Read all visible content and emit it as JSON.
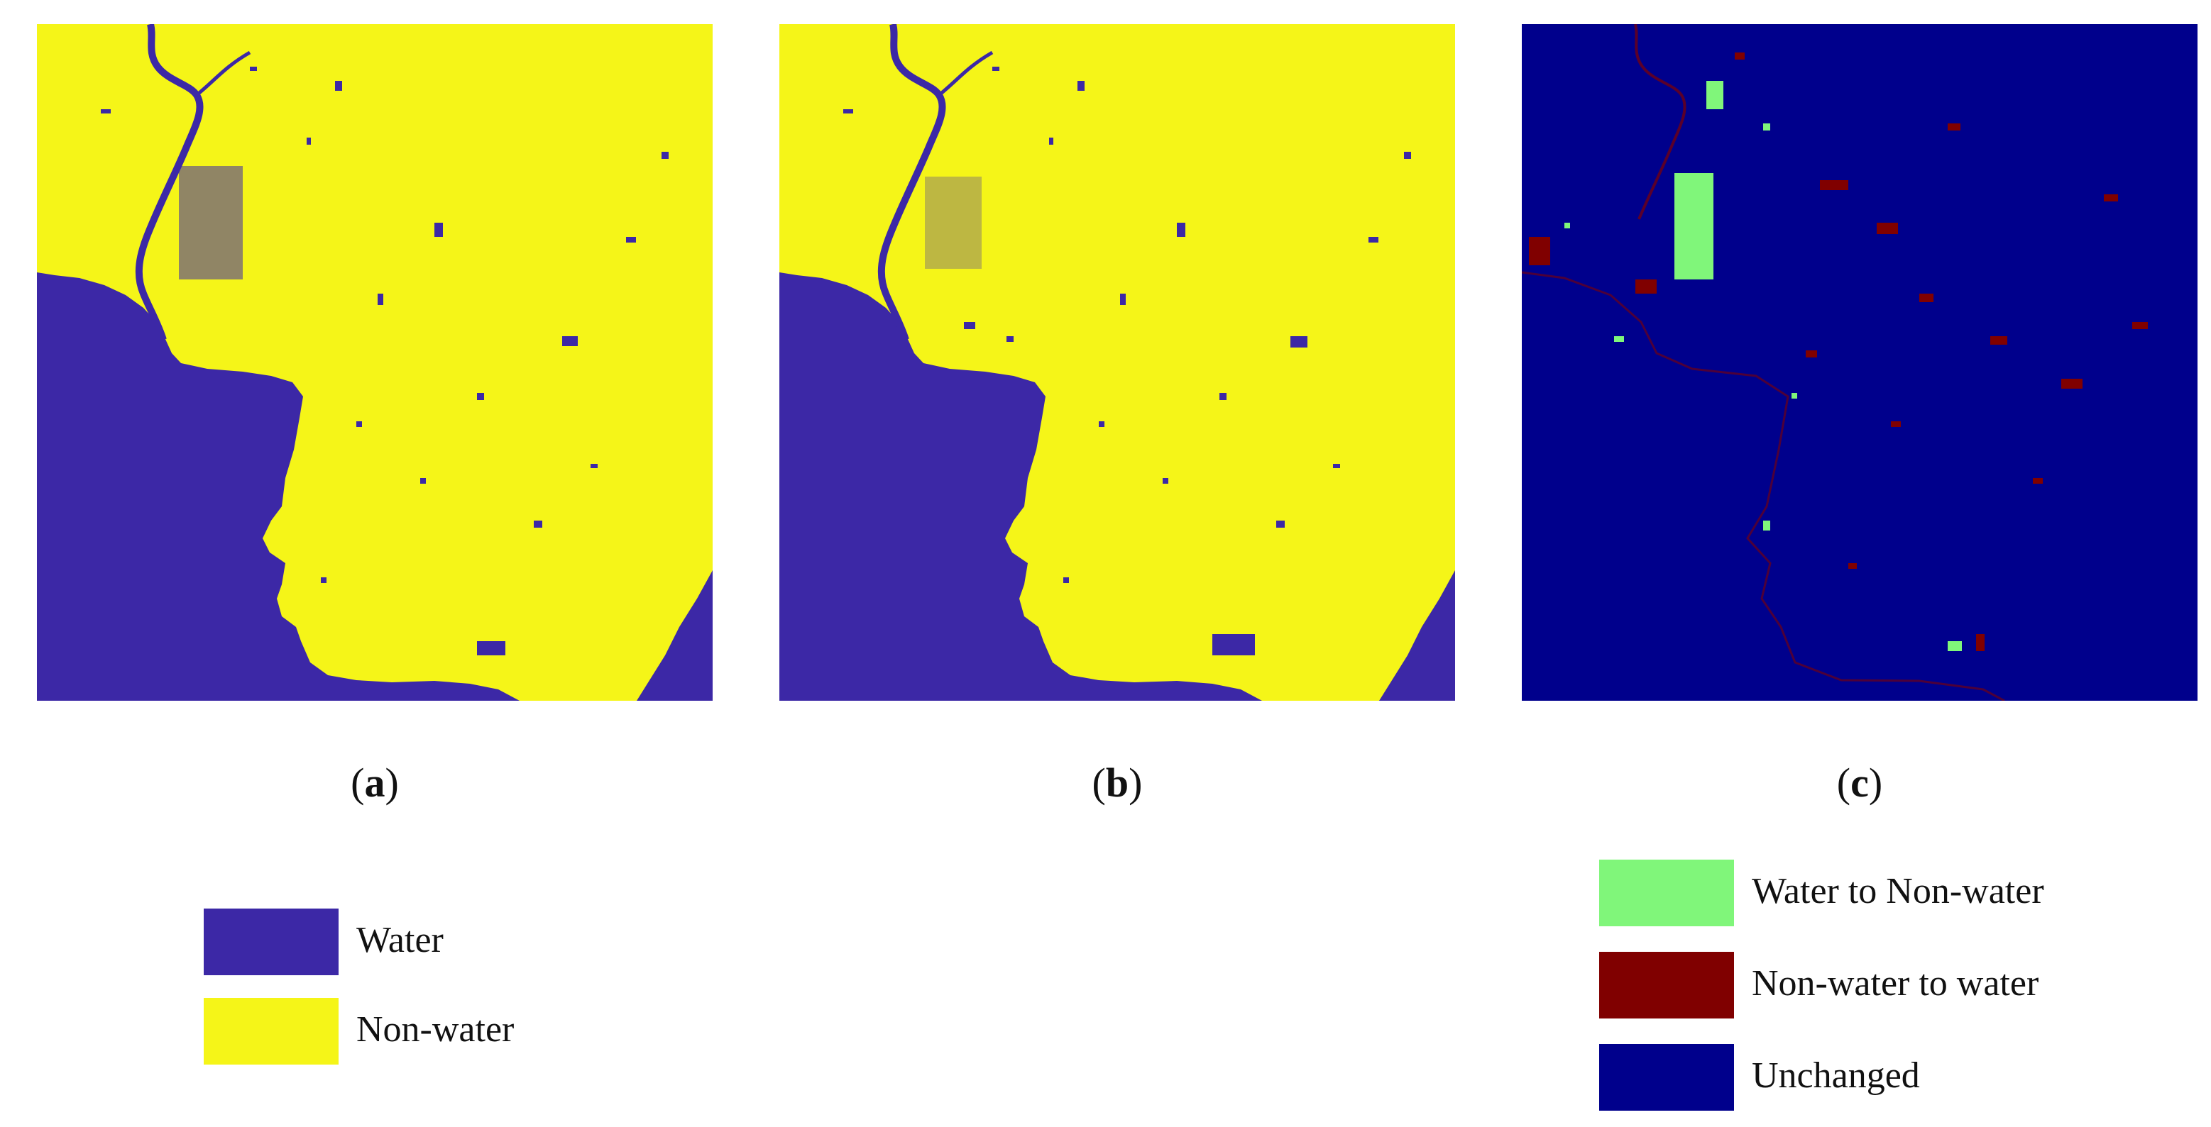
{
  "colors": {
    "water": "#3c28a6",
    "non_water": "#f5f518",
    "change_unchanged": "#00008c",
    "change_water_to_non_water": "#80f67a",
    "change_non_water_to_water": "#800000"
  },
  "panels": [
    {
      "id": "a",
      "label": "a"
    },
    {
      "id": "b",
      "label": "b"
    },
    {
      "id": "c",
      "label": "c"
    }
  ],
  "legend_left": {
    "items": [
      {
        "label": "Water",
        "color": "#3c28a6"
      },
      {
        "label": "Non-water",
        "color": "#f5f518"
      }
    ]
  },
  "legend_right": {
    "items": [
      {
        "label": "Water to Non-water",
        "color": "#80f67a"
      },
      {
        "label": "Non-water to water",
        "color": "#800000"
      },
      {
        "label": "Unchanged",
        "color": "#00008c"
      }
    ]
  }
}
